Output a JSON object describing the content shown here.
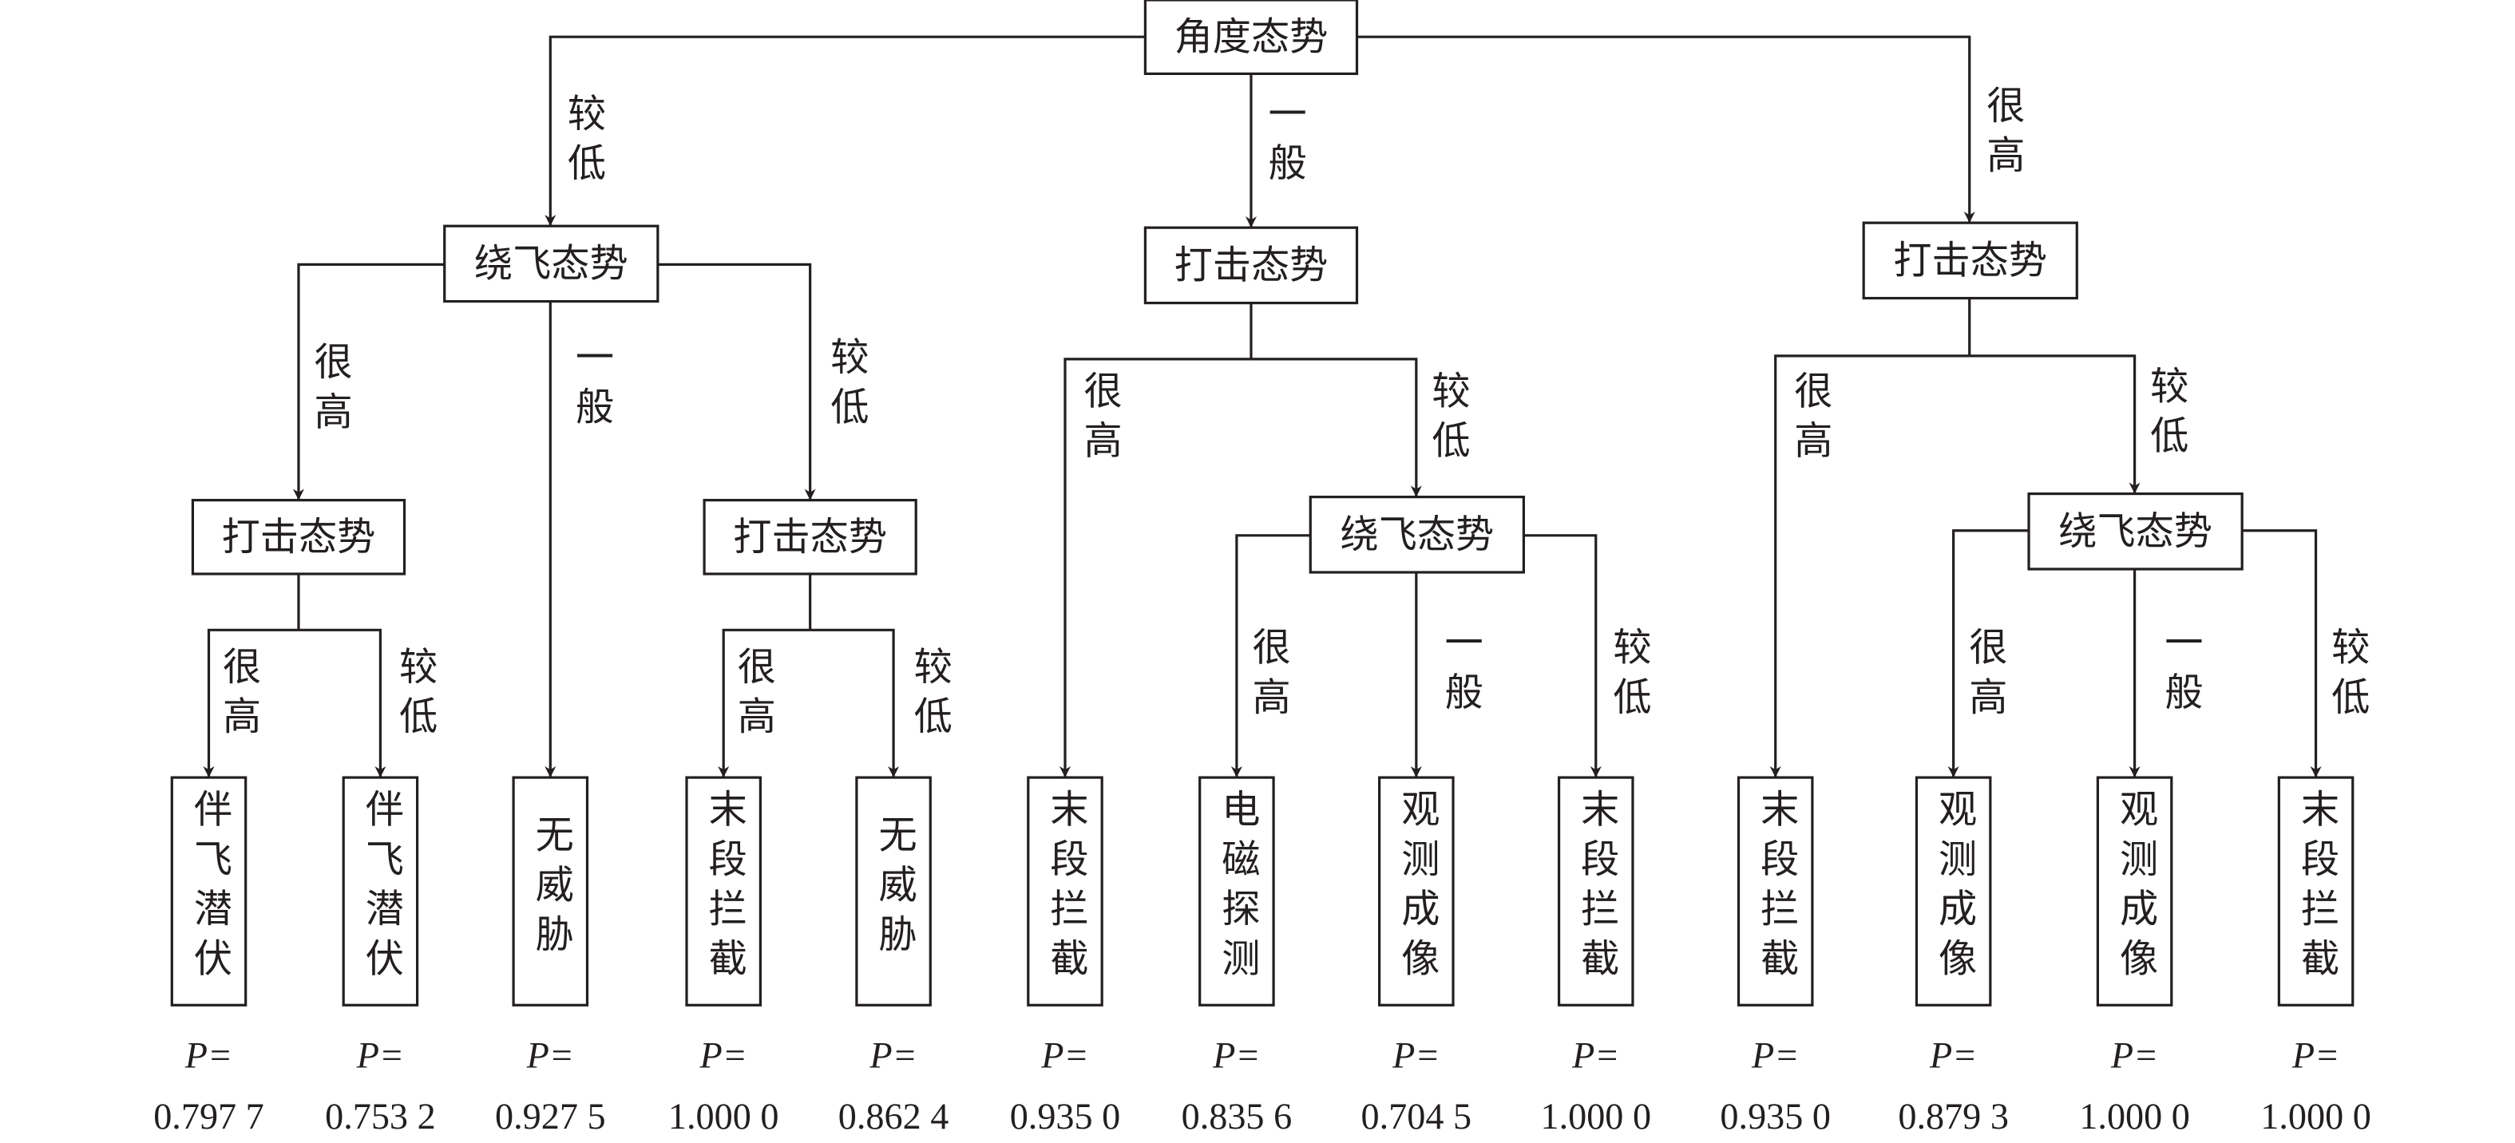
{
  "root": {
    "label": "角度态势"
  },
  "internal_nodes": [
    {
      "id": "a1",
      "label": "绕飞态势"
    },
    {
      "id": "a2",
      "label": "打击态势"
    },
    {
      "id": "a3",
      "label": "打击态势"
    },
    {
      "id": "b1",
      "label": "打击态势"
    },
    {
      "id": "b2",
      "label": "打击态势"
    },
    {
      "id": "b3",
      "label": "绕飞态势"
    },
    {
      "id": "b4",
      "label": "绕飞态势"
    }
  ],
  "edge_labels": [
    "较低",
    "一般",
    "很高",
    "很高",
    "一般",
    "较低",
    "很高",
    "较低",
    "很高",
    "较低",
    "很高",
    "较低",
    "很高",
    "一般",
    "较低",
    "很高",
    "较低",
    "很高",
    "一般",
    "较低"
  ],
  "leaves": [
    {
      "outcome": "伴飞潜伏",
      "p_label": "P=",
      "p": "0.797 7"
    },
    {
      "outcome": "伴飞潜伏",
      "p_label": "P=",
      "p": "0.753 2"
    },
    {
      "outcome": "无威胁",
      "p_label": "P=",
      "p": "0.927 5"
    },
    {
      "outcome": "末段拦截",
      "p_label": "P=",
      "p": "1.000 0"
    },
    {
      "outcome": "无威胁",
      "p_label": "P=",
      "p": "0.862 4"
    },
    {
      "outcome": "末段拦截",
      "p_label": "P=",
      "p": "0.935 0"
    },
    {
      "outcome": "电磁探测",
      "p_label": "P=",
      "p": "0.835 6"
    },
    {
      "outcome": "观测成像",
      "p_label": "P=",
      "p": "0.704 5"
    },
    {
      "outcome": "末段拦截",
      "p_label": "P=",
      "p": "1.000 0"
    },
    {
      "outcome": "末段拦截",
      "p_label": "P=",
      "p": "0.935 0"
    },
    {
      "outcome": "观测成像",
      "p_label": "P=",
      "p": "0.879 3"
    },
    {
      "outcome": "观测成像",
      "p_label": "P=",
      "p": "1.000 0"
    },
    {
      "outcome": "末段拦截",
      "p_label": "P=",
      "p": "1.000 0"
    }
  ]
}
